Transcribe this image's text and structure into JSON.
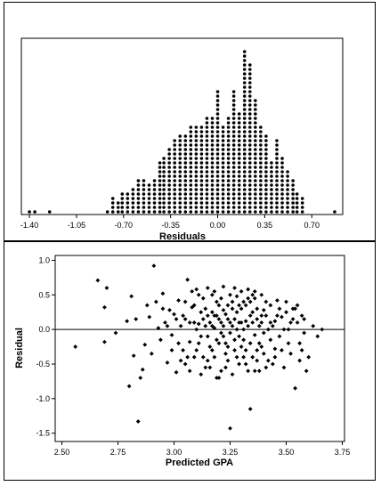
{
  "chart_data": [
    {
      "type": "dotplot",
      "xlabel": "Residuals",
      "ylabel": "",
      "xticks": [
        -1.4,
        -1.05,
        -0.7,
        -0.35,
        0.0,
        0.35,
        0.7
      ],
      "xtick_labels": [
        "-1.40",
        "-1.05",
        "-0.70",
        "-0.35",
        "0.00",
        "0.35",
        "0.70"
      ],
      "xlim": [
        -1.46,
        0.93
      ],
      "grid": false,
      "bins": [
        {
          "x": -1.4,
          "count": 1
        },
        {
          "x": -1.36,
          "count": 1
        },
        {
          "x": -1.25,
          "count": 1
        },
        {
          "x": -0.82,
          "count": 1
        },
        {
          "x": -0.78,
          "count": 4
        },
        {
          "x": -0.74,
          "count": 3
        },
        {
          "x": -0.71,
          "count": 5
        },
        {
          "x": -0.67,
          "count": 5
        },
        {
          "x": -0.63,
          "count": 6
        },
        {
          "x": -0.59,
          "count": 8
        },
        {
          "x": -0.55,
          "count": 8
        },
        {
          "x": -0.51,
          "count": 7
        },
        {
          "x": -0.47,
          "count": 8
        },
        {
          "x": -0.43,
          "count": 12
        },
        {
          "x": -0.4,
          "count": 13
        },
        {
          "x": -0.36,
          "count": 15
        },
        {
          "x": -0.32,
          "count": 17
        },
        {
          "x": -0.28,
          "count": 18
        },
        {
          "x": -0.24,
          "count": 18
        },
        {
          "x": -0.2,
          "count": 20
        },
        {
          "x": -0.16,
          "count": 20
        },
        {
          "x": -0.12,
          "count": 20
        },
        {
          "x": -0.08,
          "count": 22
        },
        {
          "x": -0.04,
          "count": 22
        },
        {
          "x": 0.0,
          "count": 28
        },
        {
          "x": 0.04,
          "count": 20
        },
        {
          "x": 0.08,
          "count": 22
        },
        {
          "x": 0.12,
          "count": 28
        },
        {
          "x": 0.16,
          "count": 23
        },
        {
          "x": 0.2,
          "count": 37
        },
        {
          "x": 0.24,
          "count": 34
        },
        {
          "x": 0.28,
          "count": 26
        },
        {
          "x": 0.32,
          "count": 20
        },
        {
          "x": 0.36,
          "count": 18
        },
        {
          "x": 0.4,
          "count": 12
        },
        {
          "x": 0.44,
          "count": 17
        },
        {
          "x": 0.48,
          "count": 13
        },
        {
          "x": 0.52,
          "count": 10
        },
        {
          "x": 0.56,
          "count": 8
        },
        {
          "x": 0.59,
          "count": 5
        },
        {
          "x": 0.63,
          "count": 4
        },
        {
          "x": 0.87,
          "count": 1
        }
      ]
    },
    {
      "type": "scatter",
      "xlabel": "Predicted GPA",
      "ylabel": "Residual",
      "xlim": [
        2.47,
        3.76
      ],
      "ylim": [
        -1.62,
        1.07
      ],
      "xticks": [
        2.5,
        2.75,
        3.0,
        3.25,
        3.5,
        3.75
      ],
      "xtick_labels": [
        "2.50",
        "2.75",
        "3.00",
        "3.25",
        "3.50",
        "3.75"
      ],
      "yticks": [
        -1.5,
        -1.0,
        -0.5,
        0.0,
        0.5,
        1.0
      ],
      "ytick_labels": [
        "-1.5",
        "-1.0",
        "-0.5",
        "0.0",
        "0.5",
        "1.0"
      ],
      "reference_line_y": 0.0,
      "grid": false,
      "points": [
        [
          2.56,
          -0.25
        ],
        [
          2.66,
          0.71
        ],
        [
          2.69,
          0.32
        ],
        [
          2.7,
          0.6
        ],
        [
          2.69,
          -0.18
        ],
        [
          2.74,
          -0.05
        ],
        [
          2.79,
          0.12
        ],
        [
          2.8,
          -0.82
        ],
        [
          2.81,
          0.48
        ],
        [
          2.82,
          -0.38
        ],
        [
          2.83,
          0.15
        ],
        [
          2.84,
          -1.33
        ],
        [
          2.85,
          -0.7
        ],
        [
          2.86,
          -0.58
        ],
        [
          2.87,
          -0.22
        ],
        [
          2.88,
          0.35
        ],
        [
          2.89,
          0.18
        ],
        [
          2.9,
          -0.35
        ],
        [
          2.91,
          0.92
        ],
        [
          2.92,
          0.4
        ],
        [
          2.93,
          0.02
        ],
        [
          2.94,
          -0.15
        ],
        [
          2.95,
          0.52
        ],
        [
          2.96,
          0.1
        ],
        [
          2.97,
          -0.48
        ],
        [
          2.98,
          0.28
        ],
        [
          2.99,
          -0.08
        ],
        [
          3.0,
          0.22
        ],
        [
          3.01,
          -0.62
        ],
        [
          3.02,
          0.42
        ],
        [
          3.03,
          0.05
        ],
        [
          3.04,
          -0.3
        ],
        [
          3.05,
          0.15
        ],
        [
          3.06,
          0.72
        ],
        [
          3.07,
          -0.18
        ],
        [
          3.08,
          0.32
        ],
        [
          3.09,
          -0.4
        ],
        [
          3.1,
          0.58
        ],
        [
          3.11,
          0.08
        ],
        [
          3.12,
          -0.1
        ],
        [
          3.13,
          0.45
        ],
        [
          3.14,
          -0.55
        ],
        [
          3.15,
          0.2
        ],
        [
          3.16,
          -0.25
        ],
        [
          3.17,
          0.5
        ],
        [
          3.18,
          0.02
        ],
        [
          3.19,
          -0.7
        ],
        [
          3.2,
          0.35
        ],
        [
          3.21,
          -0.05
        ],
        [
          3.22,
          0.62
        ],
        [
          3.23,
          -0.35
        ],
        [
          3.24,
          0.15
        ],
        [
          3.25,
          -1.43
        ],
        [
          3.26,
          0.4
        ],
        [
          3.27,
          -0.15
        ],
        [
          3.28,
          0.25
        ],
        [
          3.29,
          -0.5
        ],
        [
          3.3,
          0.55
        ],
        [
          3.31,
          0.0
        ],
        [
          3.32,
          -0.3
        ],
        [
          3.33,
          0.45
        ],
        [
          3.34,
          -1.15
        ],
        [
          3.35,
          0.1
        ],
        [
          3.36,
          -0.6
        ],
        [
          3.37,
          0.3
        ],
        [
          3.38,
          -0.2
        ],
        [
          3.39,
          0.5
        ],
        [
          3.4,
          -0.05
        ],
        [
          3.41,
          0.2
        ],
        [
          3.42,
          -0.45
        ],
        [
          3.43,
          0.35
        ],
        [
          3.44,
          0.05
        ],
        [
          3.45,
          -0.28
        ],
        [
          3.46,
          0.42
        ],
        [
          3.47,
          -0.1
        ],
        [
          3.48,
          0.18
        ],
        [
          3.49,
          -0.55
        ],
        [
          3.5,
          0.25
        ],
        [
          3.51,
          0.0
        ],
        [
          3.52,
          -0.35
        ],
        [
          3.53,
          0.3
        ],
        [
          3.54,
          -0.85
        ],
        [
          3.55,
          0.1
        ],
        [
          3.56,
          -0.2
        ],
        [
          3.57,
          0.2
        ],
        [
          3.58,
          -0.05
        ],
        [
          3.6,
          -0.4
        ],
        [
          3.62,
          0.05
        ],
        [
          3.64,
          -0.1
        ],
        [
          3.66,
          0.0
        ],
        [
          3.14,
          0.3
        ],
        [
          3.16,
          0.1
        ],
        [
          3.18,
          0.55
        ],
        [
          3.2,
          -0.2
        ],
        [
          3.22,
          0.28
        ],
        [
          3.24,
          -0.45
        ],
        [
          3.26,
          0.05
        ],
        [
          3.28,
          0.48
        ],
        [
          3.3,
          -0.25
        ],
        [
          3.32,
          0.12
        ],
        [
          3.34,
          0.4
        ],
        [
          3.36,
          -0.08
        ],
        [
          3.18,
          -0.4
        ],
        [
          3.2,
          0.15
        ],
        [
          3.22,
          -0.1
        ],
        [
          3.24,
          0.35
        ],
        [
          3.26,
          -0.65
        ],
        [
          3.28,
          0.0
        ],
        [
          3.3,
          0.3
        ],
        [
          3.32,
          -0.5
        ],
        [
          3.34,
          0.2
        ],
        [
          3.36,
          0.45
        ],
        [
          3.38,
          0.05
        ],
        [
          3.4,
          -0.35
        ],
        [
          3.1,
          -0.3
        ],
        [
          3.12,
          0.25
        ],
        [
          3.15,
          -0.45
        ],
        [
          3.17,
          0.05
        ],
        [
          3.19,
          0.4
        ],
        [
          3.21,
          -0.6
        ],
        [
          3.23,
          0.22
        ],
        [
          3.25,
          0.5
        ],
        [
          3.27,
          -0.3
        ],
        [
          3.29,
          0.1
        ],
        [
          3.31,
          -0.15
        ],
        [
          3.33,
          0.58
        ],
        [
          3.35,
          -0.4
        ],
        [
          3.37,
          0.15
        ],
        [
          3.39,
          -0.25
        ],
        [
          3.41,
          0.4
        ],
        [
          3.43,
          -0.15
        ],
        [
          3.45,
          0.12
        ],
        [
          3.05,
          -0.5
        ],
        [
          3.07,
          0.1
        ],
        [
          3.09,
          0.35
        ],
        [
          3.11,
          -0.2
        ],
        [
          3.13,
          0.15
        ],
        [
          3.15,
          0.6
        ],
        [
          3.17,
          -0.3
        ],
        [
          3.19,
          0.2
        ],
        [
          3.21,
          0.45
        ],
        [
          3.23,
          -0.2
        ],
        [
          3.25,
          0.1
        ],
        [
          3.27,
          0.6
        ],
        [
          3.29,
          -0.1
        ],
        [
          3.31,
          0.4
        ],
        [
          3.33,
          -0.6
        ],
        [
          3.35,
          0.25
        ],
        [
          3.37,
          -0.45
        ],
        [
          3.39,
          0.1
        ],
        [
          3.02,
          -0.2
        ],
        [
          3.04,
          0.2
        ],
        [
          3.06,
          -0.4
        ],
        [
          3.08,
          0.55
        ],
        [
          3.1,
          0.0
        ],
        [
          3.12,
          -0.65
        ],
        [
          3.14,
          0.05
        ],
        [
          3.16,
          -0.55
        ],
        [
          3.18,
          0.2
        ],
        [
          3.2,
          -0.7
        ],
        [
          3.22,
          0.05
        ],
        [
          3.24,
          -0.25
        ],
        [
          3.26,
          0.3
        ],
        [
          3.28,
          -0.4
        ],
        [
          3.3,
          0.1
        ],
        [
          3.32,
          0.35
        ],
        [
          3.34,
          -0.2
        ],
        [
          3.36,
          0.55
        ],
        [
          3.38,
          -0.6
        ],
        [
          3.4,
          0.28
        ],
        [
          3.42,
          0.0
        ],
        [
          3.44,
          -0.5
        ],
        [
          3.46,
          0.2
        ],
        [
          3.48,
          -0.3
        ],
        [
          3.5,
          0.4
        ],
        [
          3.52,
          0.1
        ],
        [
          3.54,
          0.3
        ],
        [
          3.56,
          -0.45
        ],
        [
          3.58,
          0.15
        ],
        [
          3.59,
          -0.6
        ],
        [
          2.95,
          0.3
        ],
        [
          2.97,
          0.05
        ],
        [
          2.99,
          -0.3
        ],
        [
          3.01,
          0.15
        ],
        [
          3.03,
          -0.45
        ],
        [
          3.05,
          0.4
        ],
        [
          3.07,
          -0.6
        ],
        [
          3.09,
          0.1
        ],
        [
          3.11,
          0.5
        ],
        [
          3.13,
          -0.4
        ],
        [
          3.15,
          -0.1
        ],
        [
          3.17,
          0.25
        ],
        [
          3.19,
          -0.15
        ],
        [
          3.21,
          0.1
        ],
        [
          3.23,
          -0.55
        ],
        [
          3.25,
          -0.05
        ],
        [
          3.27,
          0.15
        ],
        [
          3.29,
          0.35
        ],
        [
          3.31,
          -0.4
        ],
        [
          3.33,
          0.05
        ],
        [
          3.35,
          0.5
        ],
        [
          3.37,
          -0.3
        ],
        [
          3.39,
          0.2
        ],
        [
          3.41,
          -0.55
        ],
        [
          3.43,
          0.1
        ],
        [
          3.45,
          -0.4
        ],
        [
          3.47,
          0.3
        ],
        [
          3.49,
          0.0
        ],
        [
          3.51,
          -0.2
        ],
        [
          3.53,
          0.15
        ],
        [
          3.55,
          0.35
        ],
        [
          3.57,
          -0.3
        ]
      ]
    }
  ]
}
